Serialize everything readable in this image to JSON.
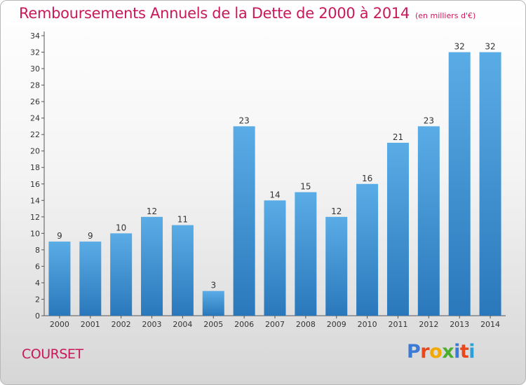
{
  "header": {
    "title": "Remboursements Annuels de la Dette de 2000 à 2014",
    "subtitle": "(en milliers d'€)"
  },
  "footer": {
    "commune": "COURSET",
    "logo": "Proxiti",
    "logo_colors": [
      "#3a7bd5",
      "#e8481c",
      "#f2a900",
      "#4cae2e",
      "#3a7bd5",
      "#e8481c",
      "#2a9fd8"
    ]
  },
  "chart_data": {
    "type": "bar",
    "categories": [
      "2000",
      "2001",
      "2002",
      "2003",
      "2004",
      "2005",
      "2006",
      "2007",
      "2008",
      "2009",
      "2010",
      "2011",
      "2012",
      "2013",
      "2014"
    ],
    "values": [
      9,
      9,
      10,
      12,
      11,
      3,
      23,
      14,
      15,
      12,
      16,
      21,
      23,
      32,
      32
    ],
    "data_labels": [
      "9",
      "9",
      "10",
      "12",
      "11",
      "3",
      "23",
      "14",
      "15",
      "12",
      "16",
      "21",
      "23",
      "32",
      "32"
    ],
    "yticks": [
      "0",
      "2",
      "4",
      "6",
      "8",
      "10",
      "12",
      "14",
      "16",
      "18",
      "20",
      "22",
      "24",
      "26",
      "28",
      "30",
      "32",
      "34"
    ],
    "ylim": [
      0,
      34
    ],
    "grid": false,
    "bar_color_top": "#5aace6",
    "bar_color_bottom": "#2a78bb"
  }
}
